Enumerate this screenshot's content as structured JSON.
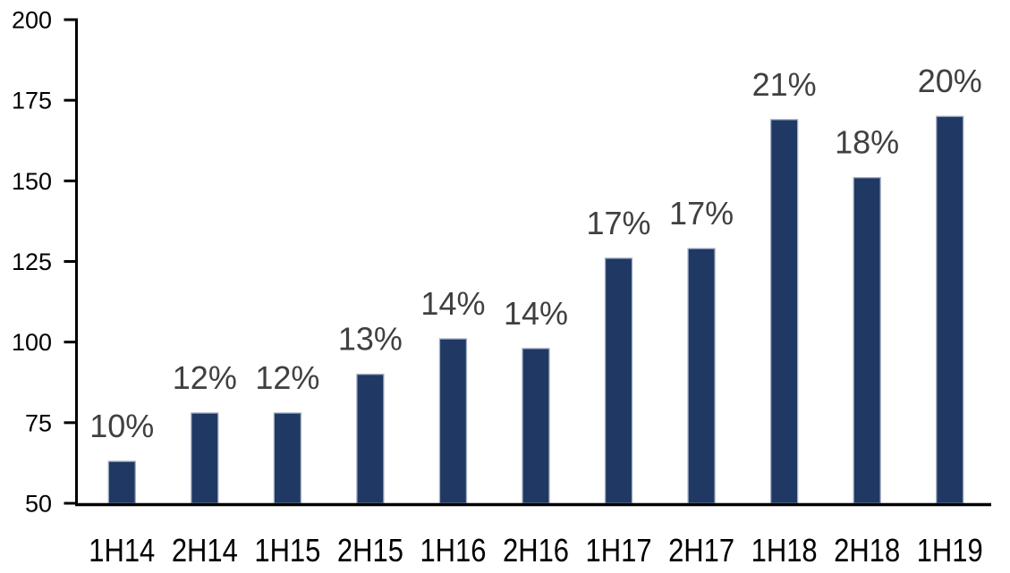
{
  "chart_data": {
    "type": "bar",
    "title": "",
    "xlabel": "",
    "ylabel": "",
    "categories": [
      "1H14",
      "2H14",
      "1H15",
      "2H15",
      "1H16",
      "2H16",
      "1H17",
      "2H17",
      "1H18",
      "2H18",
      "1H19"
    ],
    "values": [
      63,
      78,
      78,
      90,
      101,
      98,
      126,
      129,
      169,
      151,
      170
    ],
    "bar_labels": [
      "10%",
      "12%",
      "12%",
      "13%",
      "14%",
      "14%",
      "17%",
      "17%",
      "21%",
      "18%",
      "20%"
    ],
    "ylim": [
      50,
      200
    ],
    "yticks": [
      50,
      75,
      100,
      125,
      150,
      175,
      200
    ],
    "grid": false,
    "legend_position": "none",
    "colors": {
      "bar_fill": "#1f3864",
      "bar_border": "#a3aec2",
      "data_label": "#404040",
      "axis_text": "#000000",
      "axis_line": "#000000",
      "background": "#ffffff"
    }
  }
}
